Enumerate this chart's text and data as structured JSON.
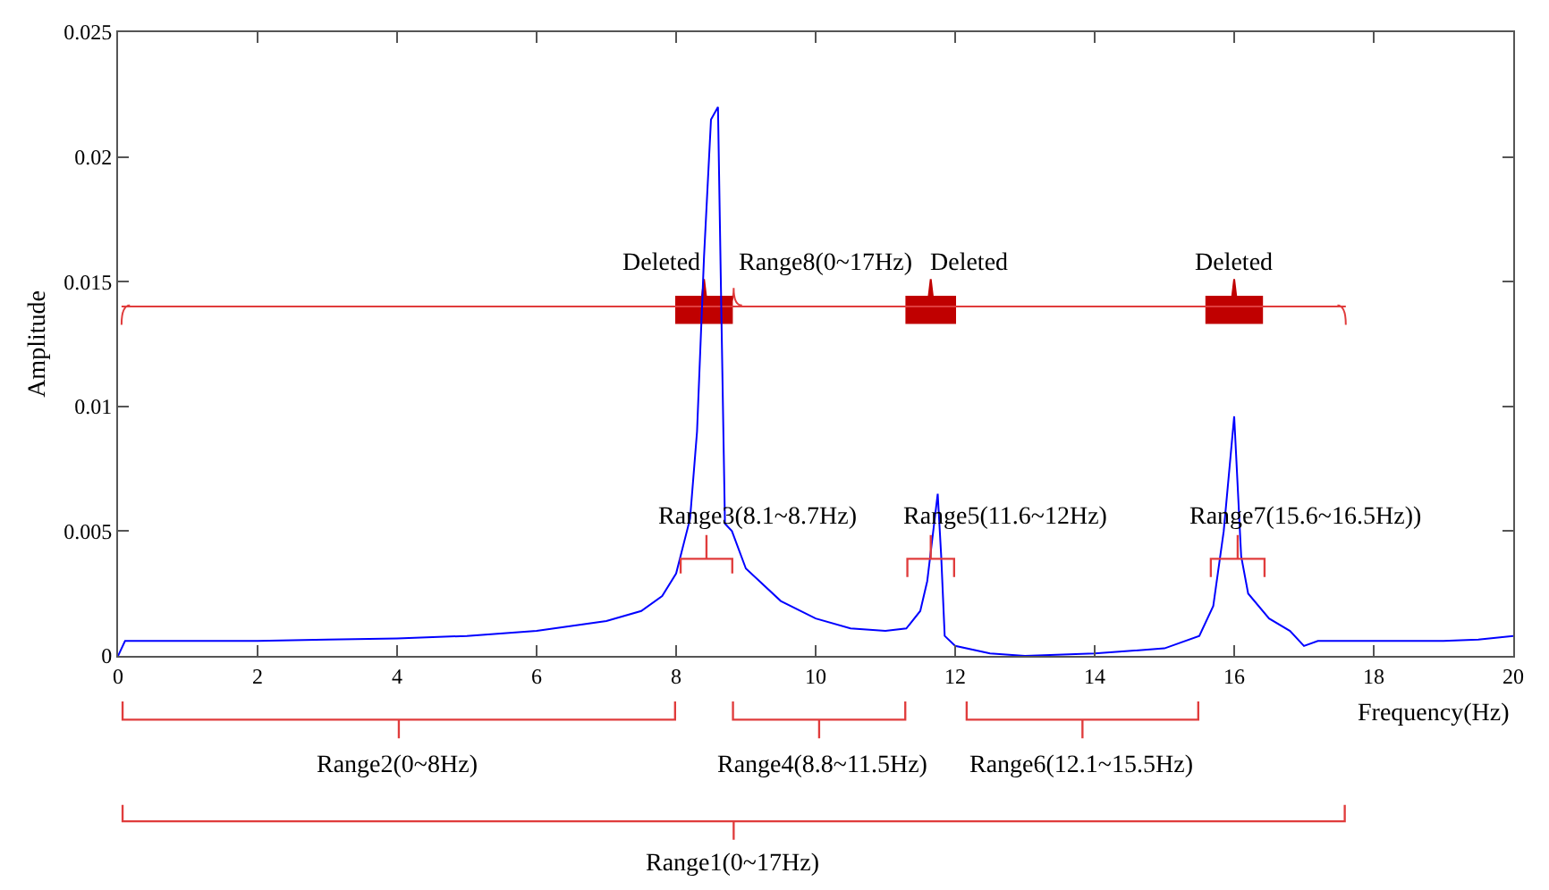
{
  "chart_data": {
    "type": "line",
    "xlabel": "Frequency(Hz)",
    "ylabel": "Amplitude",
    "x": [
      0,
      0.1,
      1,
      2,
      3,
      4,
      5,
      6,
      7,
      7.5,
      7.8,
      8.0,
      8.2,
      8.3,
      8.4,
      8.5,
      8.6,
      8.65,
      8.7,
      8.8,
      9,
      9.5,
      10,
      10.5,
      11,
      11.3,
      11.5,
      11.6,
      11.75,
      11.8,
      11.85,
      12,
      12.5,
      13,
      14,
      15,
      15.5,
      15.7,
      15.85,
      16,
      16.1,
      16.2,
      16.5,
      16.8,
      17,
      17.2,
      18,
      19,
      19.5,
      20
    ],
    "series": [
      {
        "color": "#0000ff",
        "values": [
          0,
          0.0006,
          0.0006,
          0.0006,
          0.00065,
          0.0007,
          0.0008,
          0.001,
          0.0014,
          0.0018,
          0.0024,
          0.0033,
          0.0055,
          0.009,
          0.016,
          0.0215,
          0.022,
          0.0135,
          0.0053,
          0.005,
          0.0035,
          0.0022,
          0.0015,
          0.0011,
          0.001,
          0.0011,
          0.0018,
          0.003,
          0.0065,
          0.004,
          0.0008,
          0.0004,
          0.0001,
          0,
          0.0001,
          0.0003,
          0.0008,
          0.002,
          0.005,
          0.0096,
          0.004,
          0.0025,
          0.0015,
          0.001,
          0.0004,
          0.0006,
          0.0006,
          0.0006,
          0.00065,
          0.0008
        ]
      }
    ],
    "xlim": [
      0,
      20
    ],
    "xticks": [
      0,
      2,
      4,
      6,
      8,
      10,
      12,
      14,
      16,
      18,
      20
    ],
    "ylim": [
      0,
      0.025
    ],
    "yticks": [
      0,
      0.005,
      0.01,
      0.015,
      0.02,
      0.025
    ],
    "grid": false,
    "marker": "none",
    "line_style": "solid",
    "ref_lines": [
      {
        "axis": "y",
        "value": 0.014,
        "label": "Range8(0~17Hz)",
        "color": "#e03c3c"
      }
    ],
    "annotations": [
      "Deleted",
      "Deleted",
      "Deleted",
      "Range3(8.1~8.7Hz)",
      "Range5(11.6~12Hz)",
      "Range7(15.6~16.5Hz))",
      "Range2(0~8Hz)",
      "Range4(8.8~11.5Hz)",
      "Range6(12.1~15.5Hz)",
      "Range1(0~17Hz)"
    ]
  }
}
